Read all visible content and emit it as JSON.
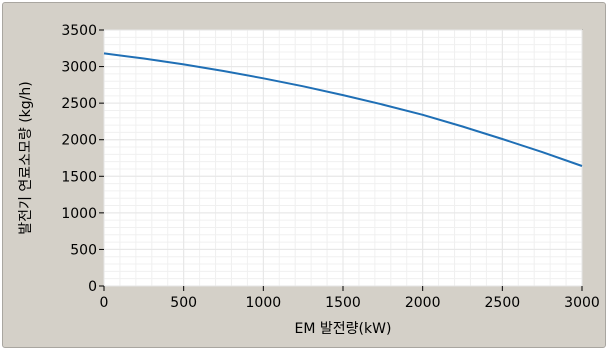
{
  "chart_data": {
    "type": "line",
    "title": "",
    "xlabel": "EM 발전량(kW)",
    "ylabel": "발전기 연료소모량 (kg/h)",
    "xlim": [
      0,
      3000
    ],
    "ylim": [
      0,
      3500
    ],
    "x_ticks": [
      "0",
      "500",
      "1000",
      "1500",
      "2000",
      "2500",
      "3000"
    ],
    "y_ticks": [
      "0",
      "500",
      "1000",
      "1500",
      "2000",
      "2500",
      "3000",
      "3500"
    ],
    "grid": true,
    "colors": {
      "line": "#1f6fb5",
      "plot_bg": "#ffffff",
      "grid": "#e6e6e6",
      "frame_bg": "#d4d0c8"
    },
    "series": [
      {
        "x": [
          0,
          250,
          500,
          750,
          1000,
          1250,
          1500,
          1750,
          2000,
          2250,
          2500,
          2750,
          3000
        ],
        "values": [
          3180,
          3110,
          3030,
          2940,
          2840,
          2730,
          2610,
          2480,
          2340,
          2180,
          2010,
          1830,
          1640
        ]
      }
    ]
  }
}
